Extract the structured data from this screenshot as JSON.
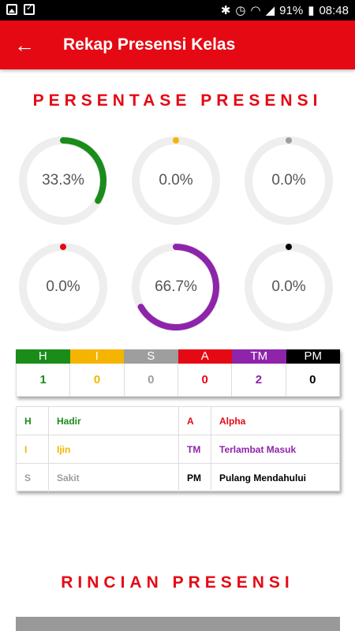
{
  "status_bar": {
    "battery": "91%",
    "time": "08:48"
  },
  "app_bar": {
    "title": "Rekap Presensi Kelas"
  },
  "section_percent": {
    "title": "PERSENTASE PRESENSI"
  },
  "rings": [
    {
      "label": "33.3%",
      "value": 0.333,
      "color": "#1a8c1a"
    },
    {
      "label": "0.0%",
      "value": 0.0,
      "color": "#f5b400"
    },
    {
      "label": "0.0%",
      "value": 0.0,
      "color": "#9e9e9e"
    },
    {
      "label": "0.0%",
      "value": 0.0,
      "color": "#e50914"
    },
    {
      "label": "66.7%",
      "value": 0.667,
      "color": "#8e24aa"
    },
    {
      "label": "0.0%",
      "value": 0.0,
      "color": "#000000"
    }
  ],
  "summary": {
    "headers": [
      {
        "code": "H",
        "color": "#1a8c1a"
      },
      {
        "code": "I",
        "color": "#f5b400"
      },
      {
        "code": "S",
        "color": "#9e9e9e"
      },
      {
        "code": "A",
        "color": "#e50914"
      },
      {
        "code": "TM",
        "color": "#8e24aa"
      },
      {
        "code": "PM",
        "color": "#000000"
      }
    ],
    "values": [
      "1",
      "0",
      "0",
      "0",
      "2",
      "0"
    ]
  },
  "legend": {
    "rows": [
      {
        "code1": "H",
        "name1": "Hadir",
        "color1": "#1a8c1a",
        "code2": "A",
        "name2": "Alpha",
        "color2": "#e50914"
      },
      {
        "code1": "I",
        "name1": "Ijin",
        "color1": "#f5b400",
        "code2": "TM",
        "name2": "Terlambat Masuk",
        "color2": "#8e24aa"
      },
      {
        "code1": "S",
        "name1": "Sakit",
        "color1": "#9e9e9e",
        "code2": "PM",
        "name2": "Pulang Mendahului",
        "color2": "#000000"
      }
    ]
  },
  "section_detail": {
    "title": "RINCIAN PRESENSI"
  }
}
